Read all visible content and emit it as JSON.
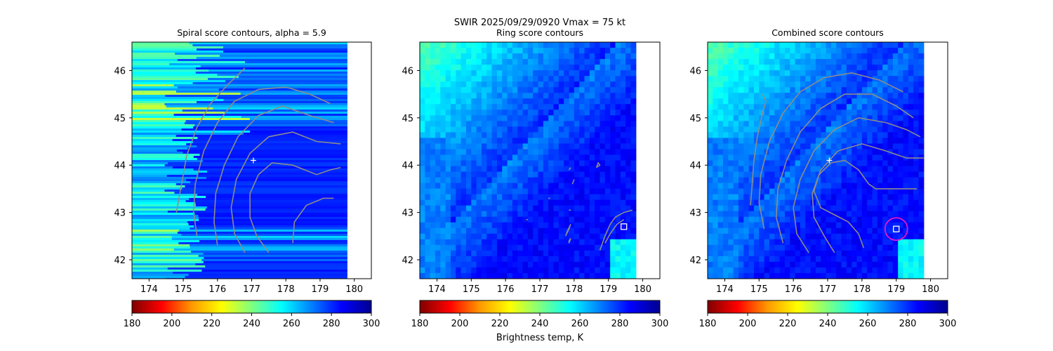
{
  "suptitle": {
    "line1": "SWIR  2025/09/29/0920    Vmax = 75 kt"
  },
  "colorbar_label": "Brightness temp, K",
  "colormap": [
    "#800000",
    "#ff0000",
    "#ff9900",
    "#ffff00",
    "#7fff7f",
    "#00ffff",
    "#0080ff",
    "#0000ff",
    "#00008f"
  ],
  "colors": {
    "contour": "#8c8c8c",
    "center_cross": "#ffffff",
    "marker_square": "#ffffff",
    "marker_circle": "#e619c8",
    "missing": "#ffffff"
  },
  "chart_data": [
    {
      "type": "heatmap",
      "title": "Spiral score contours, alpha =  5.9",
      "xlim": [
        173.5,
        180.5
      ],
      "ylim": [
        41.6,
        46.6
      ],
      "xticks": [
        174,
        175,
        176,
        177,
        178,
        179,
        180
      ],
      "yticks": [
        42,
        43,
        44,
        45,
        46
      ],
      "data_xmax": 179.8,
      "field_style": "striped",
      "colorbar": {
        "range": [
          180,
          300
        ],
        "ticks": [
          180,
          200,
          220,
          240,
          260,
          280,
          300
        ]
      },
      "center_cross": [
        177.05,
        44.1
      ],
      "contours": [
        [
          [
            174.8,
            43.0
          ],
          [
            174.95,
            43.6
          ],
          [
            175.1,
            44.2
          ],
          [
            175.4,
            44.8
          ],
          [
            175.8,
            45.3
          ],
          [
            176.3,
            45.7
          ],
          [
            176.8,
            46.05
          ]
        ],
        [
          [
            175.4,
            42.5
          ],
          [
            175.3,
            43.0
          ],
          [
            175.35,
            43.6
          ],
          [
            175.6,
            44.3
          ],
          [
            176.0,
            44.9
          ],
          [
            176.5,
            45.35
          ],
          [
            177.2,
            45.6
          ],
          [
            178.0,
            45.65
          ],
          [
            178.7,
            45.5
          ],
          [
            179.3,
            45.3
          ]
        ],
        [
          [
            176.0,
            42.3
          ],
          [
            175.9,
            42.8
          ],
          [
            175.95,
            43.4
          ],
          [
            176.2,
            44.0
          ],
          [
            176.6,
            44.6
          ],
          [
            177.2,
            45.05
          ],
          [
            177.9,
            45.25
          ],
          [
            178.7,
            45.05
          ],
          [
            179.4,
            44.9
          ]
        ],
        [
          [
            176.8,
            42.15
          ],
          [
            176.5,
            42.55
          ],
          [
            176.4,
            43.1
          ],
          [
            176.55,
            43.7
          ],
          [
            176.95,
            44.25
          ],
          [
            177.5,
            44.6
          ],
          [
            178.2,
            44.7
          ],
          [
            178.9,
            44.5
          ],
          [
            179.6,
            44.45
          ]
        ],
        [
          [
            177.5,
            42.15
          ],
          [
            177.15,
            42.5
          ],
          [
            176.95,
            42.9
          ],
          [
            176.95,
            43.4
          ],
          [
            177.2,
            43.8
          ],
          [
            177.6,
            44.05
          ],
          [
            178.2,
            44.0
          ],
          [
            178.9,
            43.8
          ],
          [
            179.3,
            43.9
          ],
          [
            179.6,
            43.95
          ]
        ],
        [
          [
            178.2,
            42.35
          ],
          [
            178.25,
            42.8
          ],
          [
            178.6,
            43.15
          ],
          [
            179.1,
            43.3
          ],
          [
            179.4,
            43.3
          ]
        ]
      ],
      "markers": []
    },
    {
      "type": "heatmap",
      "title": "Ring score contours",
      "xlim": [
        173.5,
        180.5
      ],
      "ylim": [
        41.6,
        46.6
      ],
      "xticks": [
        174,
        175,
        176,
        177,
        178,
        179,
        180
      ],
      "yticks": [
        42,
        43,
        44,
        45,
        46
      ],
      "data_xmax": 179.8,
      "field_style": "satellite",
      "colorbar": {
        "range": [
          180,
          300
        ],
        "ticks": [
          180,
          200,
          220,
          240,
          260,
          280,
          300
        ]
      },
      "center_cross": null,
      "contours": [
        [
          [
            178.75,
            42.2
          ],
          [
            178.9,
            42.5
          ],
          [
            179.05,
            42.75
          ],
          [
            179.2,
            42.9
          ],
          [
            179.45,
            43.0
          ],
          [
            179.7,
            43.05
          ]
        ],
        [
          [
            178.9,
            42.35
          ],
          [
            179.05,
            42.55
          ],
          [
            179.25,
            42.75
          ],
          [
            179.45,
            42.85
          ]
        ],
        [
          [
            177.75,
            42.5
          ],
          [
            177.85,
            42.65
          ],
          [
            177.9,
            42.75
          ],
          [
            177.8,
            42.6
          ],
          [
            177.75,
            42.5
          ]
        ],
        [
          [
            177.85,
            42.4
          ],
          [
            177.9,
            42.45
          ],
          [
            177.85,
            42.35
          ],
          [
            177.85,
            42.4
          ]
        ],
        [
          [
            178.65,
            43.95
          ],
          [
            178.7,
            44.05
          ],
          [
            178.75,
            44.0
          ],
          [
            178.65,
            43.95
          ]
        ],
        [
          [
            177.85,
            43.9
          ],
          [
            177.9,
            43.95
          ],
          [
            177.85,
            43.9
          ]
        ],
        [
          [
            177.95,
            43.6
          ],
          [
            178.0,
            43.7
          ],
          [
            177.95,
            43.6
          ]
        ],
        [
          [
            176.55,
            44.35
          ],
          [
            176.6,
            44.35
          ],
          [
            176.55,
            44.35
          ]
        ],
        [
          [
            177.25,
            43.3
          ],
          [
            177.3,
            43.3
          ],
          [
            177.25,
            43.3
          ]
        ],
        [
          [
            177.85,
            43.05
          ],
          [
            177.9,
            43.05
          ],
          [
            177.85,
            43.05
          ]
        ],
        [
          [
            176.6,
            42.85
          ],
          [
            176.65,
            42.85
          ],
          [
            176.6,
            42.85
          ]
        ]
      ],
      "markers": [
        {
          "shape": "square",
          "at": [
            179.45,
            42.7
          ]
        }
      ]
    },
    {
      "type": "heatmap",
      "title": "Combined score contours",
      "xlim": [
        173.5,
        180.5
      ],
      "ylim": [
        41.6,
        46.6
      ],
      "xticks": [
        174,
        175,
        176,
        177,
        178,
        179,
        180
      ],
      "yticks": [
        42,
        43,
        44,
        45,
        46
      ],
      "data_xmax": 179.8,
      "field_style": "satellite",
      "colorbar": {
        "range": [
          180,
          300
        ],
        "ticks": [
          180,
          200,
          220,
          240,
          260,
          280,
          300
        ]
      },
      "center_cross": [
        177.05,
        44.1
      ],
      "contours": [
        [
          [
            174.75,
            43.15
          ],
          [
            174.8,
            43.6
          ],
          [
            174.85,
            44.1
          ],
          [
            174.95,
            44.6
          ],
          [
            175.1,
            45.1
          ],
          [
            175.2,
            45.35
          ],
          [
            175.1,
            45.5
          ]
        ],
        [
          [
            175.15,
            42.65
          ],
          [
            175.0,
            43.2
          ],
          [
            175.05,
            43.8
          ],
          [
            175.3,
            44.5
          ],
          [
            175.7,
            45.1
          ],
          [
            176.2,
            45.55
          ],
          [
            176.9,
            45.85
          ],
          [
            177.7,
            45.95
          ],
          [
            178.5,
            45.8
          ],
          [
            179.2,
            45.55
          ]
        ],
        [
          [
            175.7,
            42.35
          ],
          [
            175.5,
            42.9
          ],
          [
            175.55,
            43.5
          ],
          [
            175.8,
            44.1
          ],
          [
            176.2,
            44.7
          ],
          [
            176.8,
            45.2
          ],
          [
            177.5,
            45.5
          ],
          [
            178.3,
            45.5
          ],
          [
            179.0,
            45.25
          ],
          [
            179.5,
            45.0
          ]
        ],
        [
          [
            176.45,
            42.15
          ],
          [
            176.1,
            42.55
          ],
          [
            176.0,
            43.1
          ],
          [
            176.2,
            43.7
          ],
          [
            176.6,
            44.3
          ],
          [
            177.2,
            44.75
          ],
          [
            177.9,
            45.0
          ],
          [
            178.7,
            44.9
          ],
          [
            179.3,
            44.75
          ],
          [
            179.7,
            44.6
          ]
        ],
        [
          [
            177.2,
            42.15
          ],
          [
            176.9,
            42.5
          ],
          [
            176.6,
            42.9
          ],
          [
            176.55,
            43.4
          ],
          [
            176.8,
            43.9
          ],
          [
            177.3,
            44.3
          ],
          [
            178.0,
            44.45
          ],
          [
            178.7,
            44.3
          ],
          [
            179.3,
            44.15
          ],
          [
            179.8,
            44.15
          ]
        ],
        [
          [
            178.05,
            42.25
          ],
          [
            177.9,
            42.55
          ],
          [
            177.6,
            42.8
          ],
          [
            177.2,
            42.95
          ],
          [
            176.8,
            43.1
          ],
          [
            176.6,
            43.45
          ],
          [
            176.75,
            43.8
          ],
          [
            177.1,
            44.05
          ],
          [
            177.5,
            44.1
          ],
          [
            177.9,
            43.9
          ],
          [
            178.2,
            43.6
          ],
          [
            178.4,
            43.5
          ],
          [
            178.9,
            43.5
          ],
          [
            179.4,
            43.5
          ],
          [
            179.6,
            43.5
          ]
        ]
      ],
      "markers": [
        {
          "shape": "square",
          "at": [
            179.0,
            42.65
          ]
        },
        {
          "shape": "circle",
          "at": [
            179.0,
            42.65
          ]
        }
      ]
    }
  ]
}
